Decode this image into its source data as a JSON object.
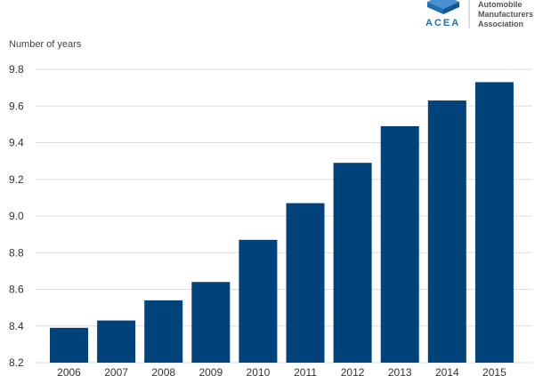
{
  "logo": {
    "acronym": "ACEA",
    "name_lines": [
      "Automobile",
      "Manufacturers",
      "Association"
    ],
    "accent_color": "#1f6fb2"
  },
  "chart_data": {
    "type": "bar",
    "ylabel": "Number of years",
    "categories": [
      "2006",
      "2007",
      "2008",
      "2009",
      "2010",
      "2011",
      "2012",
      "2013",
      "2014",
      "2015"
    ],
    "values": [
      8.39,
      8.43,
      8.54,
      8.64,
      8.87,
      9.07,
      9.29,
      9.49,
      9.63,
      9.73
    ],
    "ylim": [
      8.2,
      9.8
    ],
    "yticks": [
      "8.2",
      "8.4",
      "8.6",
      "8.8",
      "9.0",
      "9.2",
      "9.4",
      "9.6",
      "9.8"
    ],
    "grid": true,
    "legend": "none",
    "bar_color": "#00427a",
    "grid_color": "#dddddd"
  }
}
